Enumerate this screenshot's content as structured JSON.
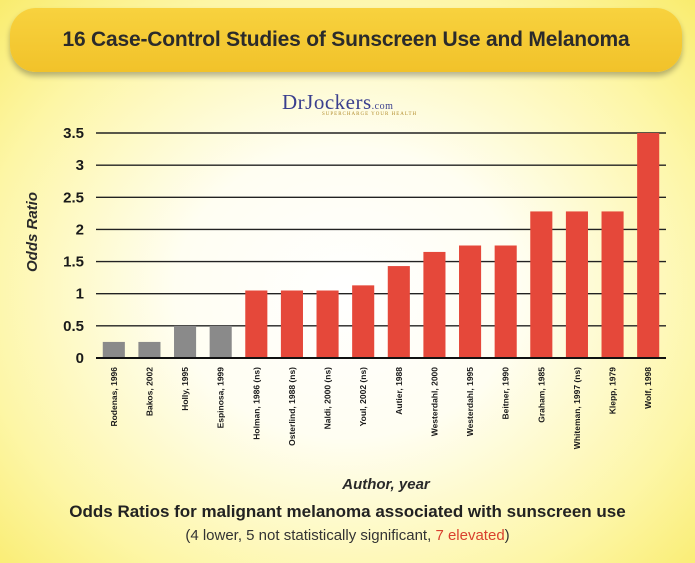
{
  "title": "16 Case-Control Studies of Sunscreen Use and Melanoma",
  "logo": {
    "text": "DrJockers",
    "suffix": ".com",
    "tagline": "SUPERCHARGE YOUR HEALTH"
  },
  "subtitle": "Odds Ratios for malignant melanoma associated with sunscreen use",
  "caption": {
    "open": "(",
    "main": "4 lower, 5 not statistically significant, ",
    "highlight": "7 elevated",
    "close": ")"
  },
  "colors": {
    "gray_bar": "#8a8a8a",
    "red_bar": "#e5483a",
    "highlight": "#d9402e"
  },
  "chart_data": {
    "type": "bar",
    "title": "16 Case-Control Studies of Sunscreen Use and Melanoma",
    "xlabel": "Author, year",
    "ylabel": "Odds Ratio",
    "ylim": [
      0,
      3.5
    ],
    "yticks": [
      0,
      0.5,
      1,
      1.5,
      2,
      2.5,
      3,
      3.5
    ],
    "ytick_labels": [
      "0",
      "0.5",
      "1",
      "1.5",
      "2",
      "2.5",
      "3",
      "3.5"
    ],
    "grid": true,
    "categories": [
      "Rodenas, 1996",
      "Bakos, 2002",
      "Holly, 1995",
      "Espinosa, 1999",
      "Holman, 1986 (ns)",
      "Osterlind, 1988 (ns)",
      "Naldi, 2000 (ns)",
      "Youl, 2002 (ns)",
      "Autier, 1988",
      "Westerdahl, 2000",
      "Westerdahl, 1995",
      "Beitner, 1990",
      "Graham, 1985",
      "Whiteman, 1997 (ns)",
      "Klepp, 1979",
      "Wolf, 1998"
    ],
    "values": [
      0.25,
      0.25,
      0.5,
      0.5,
      1.05,
      1.05,
      1.05,
      1.13,
      1.43,
      1.65,
      1.75,
      1.75,
      2.28,
      2.28,
      2.28,
      3.5
    ],
    "bar_colors": [
      "gray",
      "gray",
      "gray",
      "gray",
      "red",
      "red",
      "red",
      "red",
      "red",
      "red",
      "red",
      "red",
      "red",
      "red",
      "red",
      "red"
    ]
  }
}
